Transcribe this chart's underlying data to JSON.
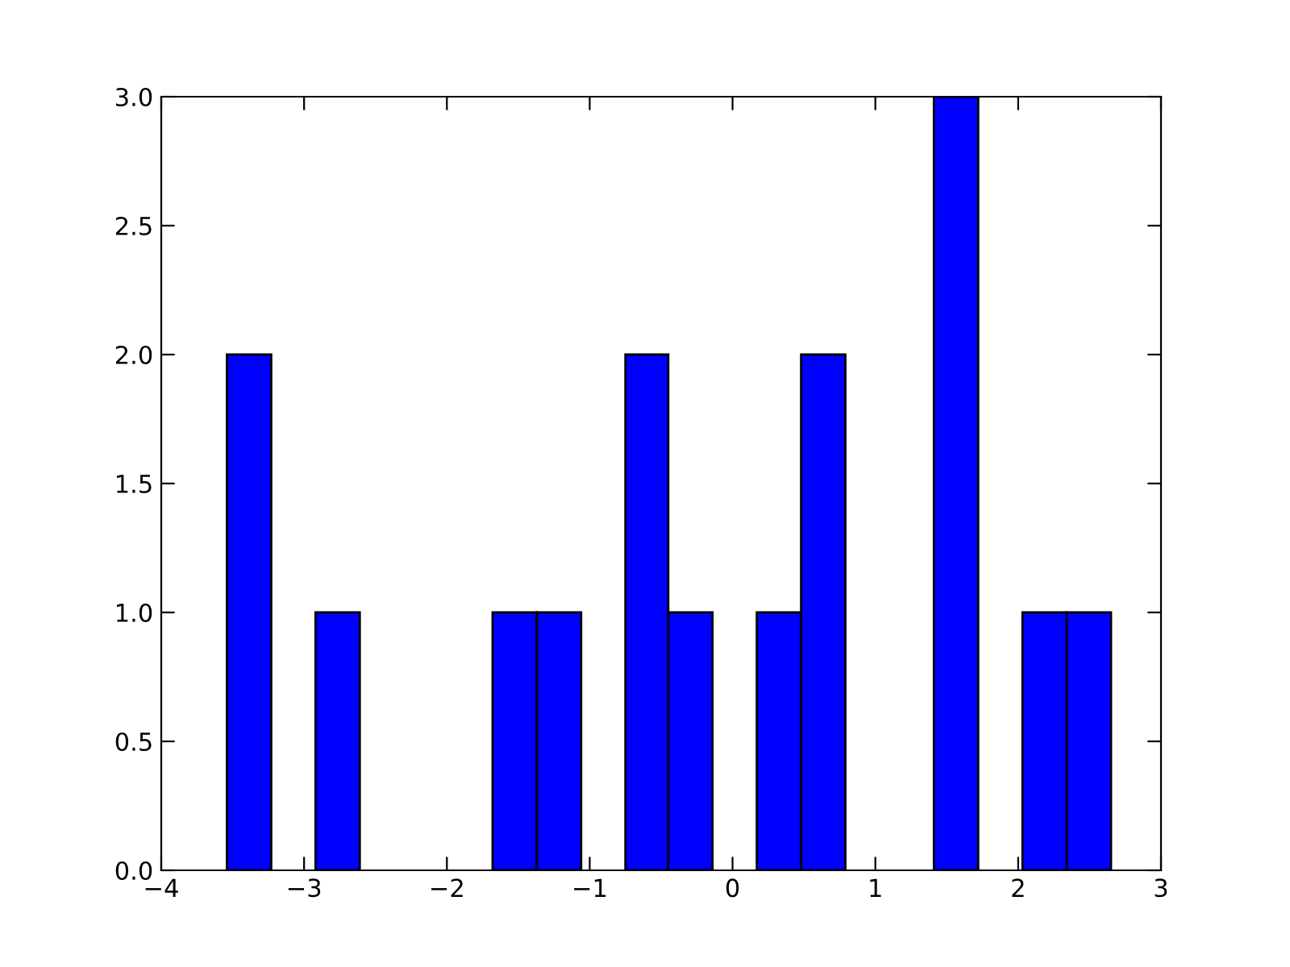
{
  "chart_data": {
    "type": "histogram",
    "bins": [
      -3.54,
      -3.23,
      -2.92,
      -2.61,
      -1.68,
      -1.37,
      -1.06,
      -0.75,
      -0.45,
      -0.14,
      0.17,
      0.48,
      0.79,
      1.41,
      1.72,
      2.03,
      2.34,
      2.65
    ],
    "values": [
      2,
      0,
      1,
      0,
      1,
      1,
      0,
      2,
      1,
      0,
      1,
      2,
      0,
      3,
      0,
      1,
      1
    ],
    "color": "#0000ff",
    "xlim": [
      -4,
      3
    ],
    "xticks": [
      {
        "value": -4,
        "label": "−4"
      },
      {
        "value": -3,
        "label": "−3"
      },
      {
        "value": -2,
        "label": "−2"
      },
      {
        "value": -1,
        "label": "−1"
      },
      0,
      1,
      2,
      3
    ],
    "ylim": [
      0,
      3
    ],
    "yticks": [
      {
        "value": 0,
        "label": "0.0"
      },
      {
        "value": 0.5,
        "label": "0.5"
      },
      {
        "value": 1,
        "label": "1.0"
      },
      {
        "value": 1.5,
        "label": "1.5"
      },
      {
        "value": 2,
        "label": "2.0"
      },
      {
        "value": 2.5,
        "label": "2.5"
      },
      {
        "value": 3,
        "label": "3.0"
      }
    ],
    "grid": false
  }
}
